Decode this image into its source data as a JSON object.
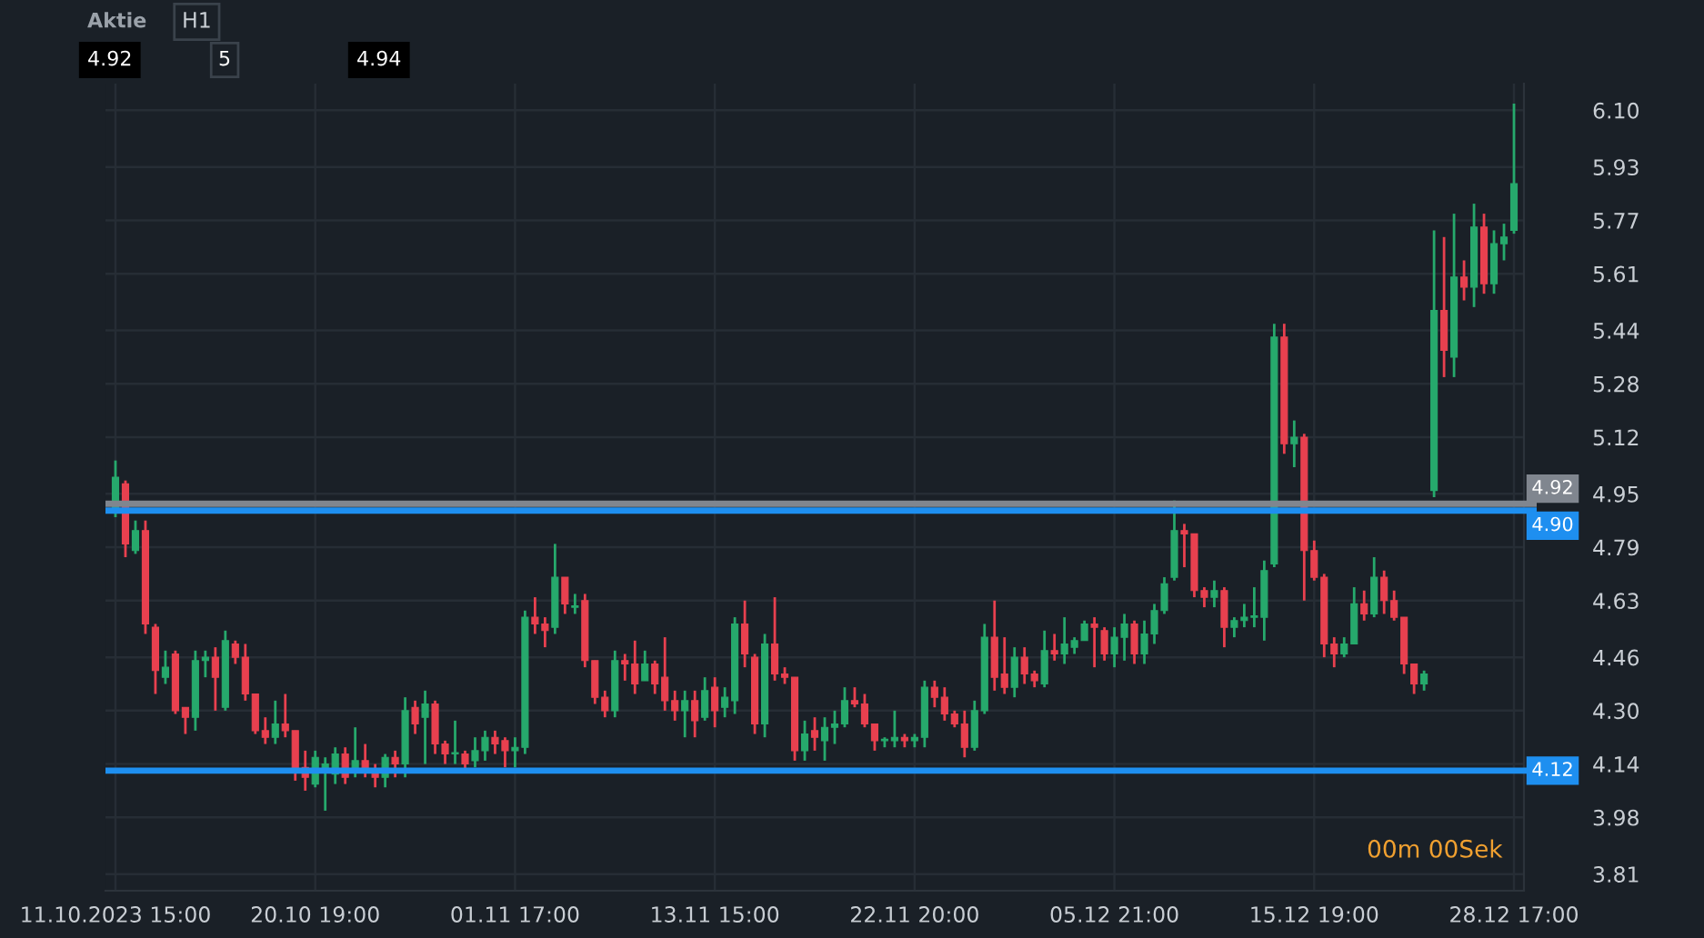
{
  "chart_data": {
    "type": "candlestick",
    "subtitle": "Aktie",
    "categories": [
      "11.10.2023 15:00",
      null,
      null,
      null,
      null,
      null,
      null,
      null,
      null,
      null,
      null,
      null,
      null,
      null,
      null,
      null,
      null,
      null,
      null,
      null,
      "20.10 19:00",
      null,
      null,
      null,
      null,
      null,
      null,
      null,
      null,
      null,
      null,
      null,
      null,
      null,
      null,
      null,
      null,
      null,
      null,
      null,
      "01.11 17:00",
      null,
      null,
      null,
      null,
      null,
      null,
      null,
      null,
      null,
      null,
      null,
      null,
      null,
      null,
      null,
      null,
      null,
      null,
      null,
      "13.11 15:00",
      null,
      null,
      null,
      null,
      null,
      null,
      null,
      null,
      null,
      null,
      null,
      null,
      null,
      null,
      null,
      null,
      null,
      null,
      null,
      "22.11 20:00",
      null,
      null,
      null,
      null,
      null,
      null,
      null,
      null,
      null,
      null,
      null,
      null,
      null,
      null,
      null,
      null,
      null,
      null,
      null,
      "05.12 21:00",
      null,
      null,
      null,
      null,
      null,
      null,
      null,
      null,
      null,
      null,
      null,
      null,
      null,
      null,
      null,
      null,
      null,
      null,
      null,
      "15.12 19:00",
      null,
      null,
      null,
      null,
      null,
      null,
      null,
      null,
      null,
      null,
      null,
      null,
      null,
      null,
      null,
      null,
      null,
      null,
      null,
      "28.12 17:00"
    ],
    "ohlc": [
      [
        4.9,
        5.05,
        4.88,
        5.0
      ],
      [
        4.98,
        4.99,
        4.76,
        4.8
      ],
      [
        4.78,
        4.87,
        4.77,
        4.84
      ],
      [
        4.84,
        4.87,
        4.53,
        4.56
      ],
      [
        4.55,
        4.56,
        4.35,
        4.42
      ],
      [
        4.4,
        4.48,
        4.38,
        4.43
      ],
      [
        4.47,
        4.48,
        4.29,
        4.3
      ],
      [
        4.31,
        4.31,
        4.23,
        4.28
      ],
      [
        4.28,
        4.48,
        4.24,
        4.45
      ],
      [
        4.45,
        4.48,
        4.4,
        4.46
      ],
      [
        4.46,
        4.49,
        4.3,
        4.4
      ],
      [
        4.31,
        4.54,
        4.3,
        4.51
      ],
      [
        4.5,
        4.51,
        4.44,
        4.46
      ],
      [
        4.46,
        4.5,
        4.33,
        4.35
      ],
      [
        4.35,
        4.35,
        4.23,
        4.24
      ],
      [
        4.24,
        4.28,
        4.2,
        4.22
      ],
      [
        4.22,
        4.33,
        4.2,
        4.26
      ],
      [
        4.26,
        4.35,
        4.22,
        4.24
      ],
      [
        4.24,
        4.24,
        4.09,
        4.12
      ],
      [
        4.13,
        4.18,
        4.06,
        4.1
      ],
      [
        4.08,
        4.18,
        4.07,
        4.16
      ],
      [
        4.12,
        4.16,
        4.0,
        4.14
      ],
      [
        4.11,
        4.19,
        4.08,
        4.17
      ],
      [
        4.17,
        4.19,
        4.08,
        4.1
      ],
      [
        4.12,
        4.25,
        4.1,
        4.15
      ],
      [
        4.15,
        4.2,
        4.1,
        4.12
      ],
      [
        4.12,
        4.14,
        4.07,
        4.1
      ],
      [
        4.1,
        4.17,
        4.07,
        4.16
      ],
      [
        4.16,
        4.18,
        4.1,
        4.14
      ],
      [
        4.14,
        4.34,
        4.1,
        4.3
      ],
      [
        4.31,
        4.33,
        4.23,
        4.26
      ],
      [
        4.28,
        4.36,
        4.14,
        4.32
      ],
      [
        4.32,
        4.33,
        4.17,
        4.2
      ],
      [
        4.2,
        4.21,
        4.14,
        4.17
      ],
      [
        4.17,
        4.27,
        4.14,
        4.17
      ],
      [
        4.17,
        4.18,
        4.12,
        4.14
      ],
      [
        4.15,
        4.22,
        4.13,
        4.18
      ],
      [
        4.18,
        4.24,
        4.15,
        4.22
      ],
      [
        4.22,
        4.24,
        4.17,
        4.2
      ],
      [
        4.21,
        4.22,
        4.13,
        4.18
      ],
      [
        4.18,
        4.22,
        4.13,
        4.19
      ],
      [
        4.19,
        4.6,
        4.17,
        4.58
      ],
      [
        4.58,
        4.64,
        4.53,
        4.56
      ],
      [
        4.56,
        4.58,
        4.49,
        4.54
      ],
      [
        4.55,
        4.8,
        4.53,
        4.7
      ],
      [
        4.7,
        4.7,
        4.59,
        4.62
      ],
      [
        4.61,
        4.65,
        4.59,
        4.61
      ],
      [
        4.63,
        4.65,
        4.43,
        4.45
      ],
      [
        4.45,
        4.45,
        4.32,
        4.34
      ],
      [
        4.34,
        4.36,
        4.28,
        4.3
      ],
      [
        4.3,
        4.48,
        4.28,
        4.45
      ],
      [
        4.45,
        4.47,
        4.39,
        4.44
      ],
      [
        4.44,
        4.51,
        4.35,
        4.38
      ],
      [
        4.39,
        4.48,
        4.39,
        4.44
      ],
      [
        4.44,
        4.45,
        4.35,
        4.38
      ],
      [
        4.4,
        4.52,
        4.3,
        4.33
      ],
      [
        4.33,
        4.36,
        4.27,
        4.3
      ],
      [
        4.3,
        4.36,
        4.22,
        4.33
      ],
      [
        4.33,
        4.36,
        4.22,
        4.27
      ],
      [
        4.28,
        4.4,
        4.27,
        4.36
      ],
      [
        4.37,
        4.4,
        4.25,
        4.3
      ],
      [
        4.31,
        4.37,
        4.28,
        4.34
      ],
      [
        4.33,
        4.58,
        4.29,
        4.56
      ],
      [
        4.56,
        4.63,
        4.43,
        4.47
      ],
      [
        4.46,
        4.47,
        4.23,
        4.26
      ],
      [
        4.26,
        4.53,
        4.22,
        4.5
      ],
      [
        4.5,
        4.64,
        4.39,
        4.41
      ],
      [
        4.41,
        4.43,
        4.38,
        4.4
      ],
      [
        4.4,
        4.4,
        4.15,
        4.18
      ],
      [
        4.18,
        4.27,
        4.15,
        4.23
      ],
      [
        4.24,
        4.28,
        4.18,
        4.22
      ],
      [
        4.21,
        4.28,
        4.15,
        4.25
      ],
      [
        4.25,
        4.3,
        4.2,
        4.26
      ],
      [
        4.26,
        4.37,
        4.25,
        4.33
      ],
      [
        4.33,
        4.37,
        4.31,
        4.32
      ],
      [
        4.32,
        4.35,
        4.25,
        4.26
      ],
      [
        4.26,
        4.26,
        4.18,
        4.21
      ],
      [
        4.21,
        4.22,
        4.19,
        4.21
      ],
      [
        4.21,
        4.3,
        4.19,
        4.22
      ],
      [
        4.22,
        4.23,
        4.19,
        4.21
      ],
      [
        4.21,
        4.23,
        4.19,
        4.22
      ],
      [
        4.22,
        4.39,
        4.19,
        4.37
      ],
      [
        4.37,
        4.39,
        4.31,
        4.34
      ],
      [
        4.34,
        4.37,
        4.27,
        4.29
      ],
      [
        4.29,
        4.3,
        4.25,
        4.26
      ],
      [
        4.26,
        4.3,
        4.16,
        4.19
      ],
      [
        4.19,
        4.33,
        4.18,
        4.3
      ],
      [
        4.3,
        4.56,
        4.29,
        4.52
      ],
      [
        4.52,
        4.63,
        4.36,
        4.4
      ],
      [
        4.41,
        4.52,
        4.35,
        4.37
      ],
      [
        4.37,
        4.49,
        4.34,
        4.46
      ],
      [
        4.46,
        4.49,
        4.38,
        4.41
      ],
      [
        4.41,
        4.42,
        4.37,
        4.39
      ],
      [
        4.38,
        4.54,
        4.37,
        4.48
      ],
      [
        4.48,
        4.53,
        4.45,
        4.47
      ],
      [
        4.47,
        4.58,
        4.44,
        4.5
      ],
      [
        4.49,
        4.52,
        4.47,
        4.51
      ],
      [
        4.51,
        4.57,
        4.51,
        4.56
      ],
      [
        4.56,
        4.58,
        4.43,
        4.55
      ],
      [
        4.54,
        4.55,
        4.45,
        4.47
      ],
      [
        4.47,
        4.55,
        4.43,
        4.52
      ],
      [
        4.52,
        4.59,
        4.45,
        4.56
      ],
      [
        4.56,
        4.57,
        4.44,
        4.47
      ],
      [
        4.47,
        4.57,
        4.44,
        4.53
      ],
      [
        4.53,
        4.62,
        4.5,
        4.6
      ],
      [
        4.6,
        4.7,
        4.59,
        4.68
      ],
      [
        4.7,
        4.93,
        4.69,
        4.84
      ],
      [
        4.84,
        4.86,
        4.73,
        4.83
      ],
      [
        4.83,
        4.83,
        4.64,
        4.66
      ],
      [
        4.66,
        4.67,
        4.61,
        4.64
      ],
      [
        4.64,
        4.69,
        4.61,
        4.66
      ],
      [
        4.66,
        4.67,
        4.49,
        4.55
      ],
      [
        4.55,
        4.58,
        4.52,
        4.57
      ],
      [
        4.57,
        4.62,
        4.55,
        4.58
      ],
      [
        4.58,
        4.67,
        4.55,
        4.58
      ],
      [
        4.58,
        4.75,
        4.51,
        4.72
      ],
      [
        4.74,
        5.46,
        4.73,
        5.42
      ],
      [
        5.42,
        5.46,
        5.07,
        5.1
      ],
      [
        5.1,
        5.17,
        5.03,
        5.12
      ],
      [
        5.12,
        5.13,
        4.63,
        4.78
      ],
      [
        4.78,
        4.81,
        4.69,
        4.7
      ],
      [
        4.7,
        4.71,
        4.46,
        4.5
      ],
      [
        4.5,
        4.52,
        4.43,
        4.47
      ],
      [
        4.47,
        4.52,
        4.46,
        4.5
      ],
      [
        4.5,
        4.67,
        4.5,
        4.62
      ],
      [
        4.62,
        4.66,
        4.57,
        4.59
      ],
      [
        4.59,
        4.76,
        4.58,
        4.7
      ],
      [
        4.7,
        4.72,
        4.59,
        4.63
      ],
      [
        4.63,
        4.66,
        4.57,
        4.58
      ],
      [
        4.58,
        4.58,
        4.41,
        4.44
      ],
      [
        4.44,
        4.44,
        4.35,
        4.38
      ],
      [
        4.38,
        4.42,
        4.36,
        4.41
      ],
      [
        4.96,
        5.74,
        4.94,
        5.5
      ],
      [
        5.5,
        5.72,
        5.3,
        5.38
      ],
      [
        5.36,
        5.79,
        5.3,
        5.6
      ],
      [
        5.6,
        5.65,
        5.53,
        5.57
      ],
      [
        5.57,
        5.82,
        5.51,
        5.75
      ],
      [
        5.75,
        5.79,
        5.55,
        5.58
      ],
      [
        5.58,
        5.74,
        5.55,
        5.7
      ],
      [
        5.7,
        5.76,
        5.65,
        5.72
      ],
      [
        5.74,
        6.12,
        5.73,
        5.88
      ]
    ],
    "colors": [
      "#26a96c",
      "#e8404f",
      "#26a96c",
      "#e8404f",
      "#e8404f",
      "#26a96c",
      "#e8404f",
      "#e8404f",
      "#26a96c",
      "#26a96c",
      "#e8404f",
      "#26a96c",
      "#e8404f",
      "#e8404f",
      "#e8404f",
      "#e8404f",
      "#26a96c",
      "#e8404f",
      "#e8404f",
      "#e8404f",
      "#26a96c",
      "#26a96c",
      "#26a96c",
      "#e8404f",
      "#26a96c",
      "#e8404f",
      "#e8404f",
      "#26a96c",
      "#e8404f",
      "#26a96c",
      "#e8404f",
      "#26a96c",
      "#e8404f",
      "#e8404f",
      "#26a96c",
      "#e8404f",
      "#26a96c",
      "#26a96c",
      "#e8404f",
      "#e8404f",
      "#26a96c",
      "#26a96c",
      "#e8404f",
      "#e8404f",
      "#26a96c",
      "#e8404f",
      "#26a96c",
      "#e8404f",
      "#e8404f",
      "#e8404f",
      "#26a96c",
      "#e8404f",
      "#e8404f",
      "#26a96c",
      "#e8404f",
      "#e8404f",
      "#e8404f",
      "#26a96c",
      "#e8404f",
      "#26a96c",
      "#e8404f",
      "#26a96c",
      "#26a96c",
      "#e8404f",
      "#e8404f",
      "#26a96c",
      "#e8404f",
      "#e8404f",
      "#e8404f",
      "#26a96c",
      "#e8404f",
      "#26a96c",
      "#26a96c",
      "#26a96c",
      "#e8404f",
      "#e8404f",
      "#e8404f",
      "#26a96c",
      "#26a96c",
      "#e8404f",
      "#26a96c",
      "#26a96c",
      "#e8404f",
      "#e8404f",
      "#e8404f",
      "#e8404f",
      "#26a96c",
      "#26a96c",
      "#e8404f",
      "#e8404f",
      "#26a96c",
      "#e8404f",
      "#e8404f",
      "#26a96c",
      "#e8404f",
      "#26a96c",
      "#26a96c",
      "#26a96c",
      "#e8404f",
      "#e8404f",
      "#26a96c",
      "#26a96c",
      "#e8404f",
      "#26a96c",
      "#26a96c",
      "#26a96c",
      "#26a96c",
      "#e8404f",
      "#e8404f",
      "#e8404f",
      "#26a96c",
      "#e8404f",
      "#26a96c",
      "#26a96c",
      "#26a96c",
      "#26a96c",
      "#26a96c",
      "#e8404f",
      "#26a96c",
      "#e8404f",
      "#e8404f",
      "#e8404f",
      "#e8404f",
      "#26a96c",
      "#26a96c",
      "#e8404f",
      "#26a96c",
      "#e8404f",
      "#e8404f",
      "#e8404f",
      "#e8404f",
      "#26a96c",
      "#26a96c",
      "#e8404f",
      "#26a96c",
      "#e8404f",
      "#26a96c",
      "#e8404f",
      "#26a96c",
      "#26a96c",
      "#26a96c"
    ],
    "ylim": [
      3.76,
      6.18
    ],
    "yticks": [
      3.81,
      3.98,
      4.14,
      {
        "value": 4.3,
        "label": "4.30"
      },
      4.46,
      4.63,
      4.79,
      4.95,
      5.12,
      5.28,
      5.44,
      5.61,
      5.77,
      5.93,
      {
        "value": 6.1,
        "label": "6.10"
      }
    ],
    "grid": true,
    "ref_lines": [
      {
        "axis": "y",
        "value": 4.92,
        "label": "4.92",
        "color": "#80868f"
      },
      {
        "axis": "y",
        "value": 4.9,
        "label": "4.90",
        "color": "#1e8ff0"
      },
      {
        "axis": "y",
        "value": 4.12,
        "label": "4.12",
        "color": "#1e8ff0"
      }
    ],
    "annotations": [
      "H1",
      "4.92",
      "5",
      "4.94",
      "00m 00Sek"
    ]
  }
}
